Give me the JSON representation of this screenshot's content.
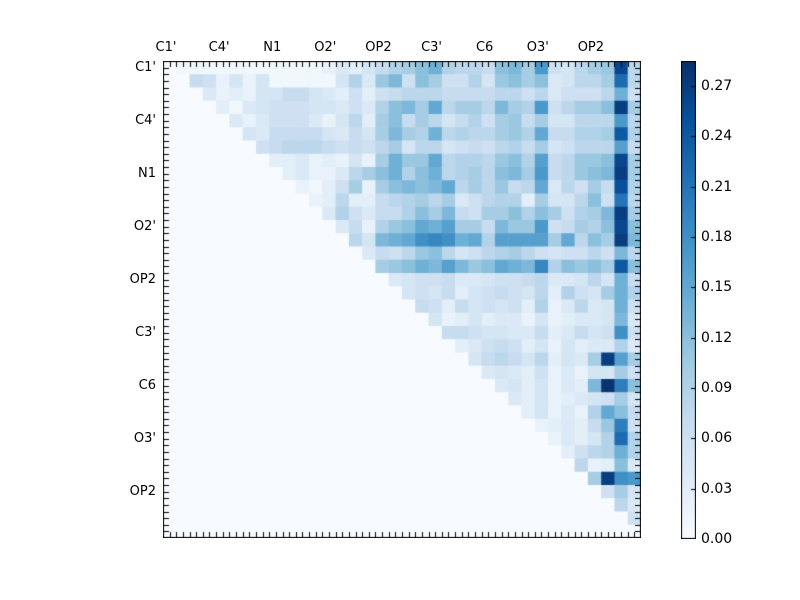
{
  "figure": {
    "background": "#ffffff"
  },
  "chart_data": {
    "type": "heatmap",
    "title": "",
    "n": 36,
    "label_every": 4,
    "ticks_per_cell": 2,
    "x_tick_labels": [
      "C1'",
      "C4'",
      "N1",
      "O2'",
      "OP2",
      "C3'",
      "C6",
      "O3'",
      "OP2"
    ],
    "y_tick_labels": [
      "C1'",
      "C4'",
      "N1",
      "O2'",
      "OP2",
      "C3'",
      "C6",
      "O3'",
      "OP2"
    ],
    "vmin": 0.0,
    "vmax": 0.285,
    "colormap": "Blues",
    "colormap_stops": [
      0,
      0.125,
      0.25,
      0.375,
      0.5,
      0.625,
      0.75,
      0.875,
      1.0
    ],
    "colormap_colors": [
      "#f7fbff",
      "#deebf7",
      "#c6dbef",
      "#9ecae1",
      "#6baed6",
      "#4292c6",
      "#2171b5",
      "#08519c",
      "#08306b"
    ],
    "colorbar": {
      "tick_values": [
        0.0,
        0.03,
        0.06,
        0.09,
        0.12,
        0.15,
        0.18,
        0.21,
        0.24,
        0.27
      ],
      "tick_labels": [
        "0.00",
        "0.03",
        "0.06",
        "0.09",
        "0.12",
        "0.15",
        "0.18",
        "0.21",
        "0.24",
        "0.27"
      ]
    },
    "matrix": [
      [
        0,
        0.01,
        0.01,
        0.01,
        0.01,
        0.01,
        0.01,
        0.01,
        0.01,
        0.01,
        0.01,
        0.01,
        0.02,
        0.04,
        0.03,
        0.05,
        0.07,
        0.09,
        0.1,
        0.12,
        0.14,
        0.09,
        0.08,
        0.08,
        0.07,
        0.12,
        0.13,
        0.1,
        0.17,
        0.06,
        0.05,
        0.08,
        0.1,
        0.11,
        0.26,
        0.08
      ],
      [
        0,
        0,
        0.07,
        0.06,
        0.02,
        0.05,
        0.02,
        0.05,
        0.01,
        0.01,
        0.01,
        0.01,
        0.01,
        0.05,
        0.09,
        0.04,
        0.11,
        0.13,
        0.06,
        0.12,
        0.1,
        0.06,
        0.06,
        0.09,
        0.05,
        0.11,
        0.12,
        0.1,
        0.12,
        0.04,
        0.05,
        0.08,
        0.08,
        0.1,
        0.22,
        0.08
      ],
      [
        0,
        0,
        0,
        0.04,
        0.02,
        0.03,
        0.02,
        0.05,
        0.05,
        0.07,
        0.07,
        0.05,
        0.04,
        0.03,
        0.06,
        0.03,
        0.06,
        0.07,
        0.08,
        0.08,
        0.08,
        0.07,
        0.07,
        0.07,
        0.07,
        0.08,
        0.08,
        0.06,
        0.08,
        0.04,
        0.06,
        0.06,
        0.06,
        0.08,
        0.14,
        0.06
      ],
      [
        0,
        0,
        0,
        0,
        0.03,
        0.01,
        0.04,
        0.05,
        0.06,
        0.06,
        0.06,
        0.05,
        0.05,
        0.04,
        0.06,
        0.04,
        0.09,
        0.12,
        0.13,
        0.1,
        0.15,
        0.08,
        0.1,
        0.1,
        0.08,
        0.13,
        0.1,
        0.09,
        0.17,
        0.06,
        0.08,
        0.1,
        0.1,
        0.12,
        0.27,
        0.1
      ],
      [
        0,
        0,
        0,
        0,
        0,
        0.04,
        0.02,
        0.04,
        0.06,
        0.06,
        0.06,
        0.04,
        0.02,
        0.05,
        0.08,
        0.03,
        0.1,
        0.12,
        0.07,
        0.1,
        0.08,
        0.05,
        0.07,
        0.09,
        0.06,
        0.1,
        0.11,
        0.07,
        0.1,
        0.05,
        0.05,
        0.08,
        0.08,
        0.08,
        0.17,
        0.08
      ],
      [
        0,
        0,
        0,
        0,
        0,
        0,
        0.05,
        0.04,
        0.07,
        0.07,
        0.07,
        0.07,
        0.05,
        0.04,
        0.07,
        0.05,
        0.1,
        0.13,
        0.1,
        0.09,
        0.14,
        0.08,
        0.09,
        0.08,
        0.08,
        0.1,
        0.11,
        0.09,
        0.15,
        0.07,
        0.07,
        0.09,
        0.09,
        0.1,
        0.24,
        0.09
      ],
      [
        0,
        0,
        0,
        0,
        0,
        0,
        0,
        0.06,
        0.07,
        0.08,
        0.08,
        0.08,
        0.07,
        0.06,
        0.07,
        0.06,
        0.08,
        0.1,
        0.05,
        0.08,
        0.08,
        0.05,
        0.06,
        0.07,
        0.06,
        0.08,
        0.09,
        0.07,
        0.1,
        0.05,
        0.06,
        0.08,
        0.08,
        0.08,
        0.16,
        0.07
      ],
      [
        0,
        0,
        0,
        0,
        0,
        0,
        0,
        0,
        0.03,
        0.03,
        0.04,
        0.02,
        0.03,
        0.02,
        0.05,
        0.02,
        0.1,
        0.14,
        0.11,
        0.11,
        0.15,
        0.08,
        0.09,
        0.09,
        0.08,
        0.11,
        0.12,
        0.09,
        0.16,
        0.07,
        0.08,
        0.11,
        0.11,
        0.12,
        0.26,
        0.1
      ],
      [
        0,
        0,
        0,
        0,
        0,
        0,
        0,
        0,
        0,
        0.03,
        0.04,
        0.02,
        0.02,
        0.04,
        0.08,
        0.1,
        0.12,
        0.14,
        0.09,
        0.12,
        0.14,
        0.08,
        0.09,
        0.1,
        0.08,
        0.12,
        0.13,
        0.1,
        0.17,
        0.07,
        0.08,
        0.11,
        0.12,
        0.13,
        0.27,
        0.1
      ],
      [
        0,
        0,
        0,
        0,
        0,
        0,
        0,
        0,
        0,
        0,
        0.02,
        0.01,
        0.03,
        0.06,
        0.1,
        0.02,
        0.1,
        0.12,
        0.13,
        0.12,
        0.13,
        0.15,
        0.08,
        0.1,
        0.08,
        0.11,
        0.07,
        0.08,
        0.15,
        0.04,
        0.08,
        0.06,
        0.1,
        0.07,
        0.25,
        0.09
      ],
      [
        0,
        0,
        0,
        0,
        0,
        0,
        0,
        0,
        0,
        0,
        0,
        0.02,
        0.03,
        0.08,
        0.03,
        0.03,
        0.07,
        0.08,
        0.09,
        0.1,
        0.08,
        0.1,
        0.04,
        0.06,
        0.08,
        0.09,
        0.09,
        0.03,
        0.1,
        0.05,
        0.05,
        0.08,
        0.12,
        0.06,
        0.21,
        0.08
      ],
      [
        0,
        0,
        0,
        0,
        0,
        0,
        0,
        0,
        0,
        0,
        0,
        0,
        0.04,
        0.09,
        0.06,
        0.04,
        0.07,
        0.07,
        0.09,
        0.12,
        0.1,
        0.13,
        0.07,
        0.06,
        0.1,
        0.1,
        0.12,
        0.09,
        0.12,
        0.1,
        0.06,
        0.09,
        0.1,
        0.13,
        0.27,
        0.1
      ],
      [
        0,
        0,
        0,
        0,
        0,
        0,
        0,
        0,
        0,
        0,
        0,
        0,
        0,
        0.04,
        0.07,
        0.02,
        0.09,
        0.11,
        0.12,
        0.15,
        0.14,
        0.16,
        0.1,
        0.1,
        0.07,
        0.13,
        0.11,
        0.11,
        0.17,
        0.06,
        0.07,
        0.1,
        0.09,
        0.12,
        0.26,
        0.12
      ],
      [
        0,
        0,
        0,
        0,
        0,
        0,
        0,
        0,
        0,
        0,
        0,
        0,
        0,
        0,
        0.08,
        0.05,
        0.13,
        0.14,
        0.15,
        0.18,
        0.19,
        0.18,
        0.14,
        0.15,
        0.09,
        0.16,
        0.16,
        0.16,
        0.16,
        0.1,
        0.15,
        0.08,
        0.12,
        0.1,
        0.27,
        0.13
      ],
      [
        0,
        0,
        0,
        0,
        0,
        0,
        0,
        0,
        0,
        0,
        0,
        0,
        0,
        0,
        0,
        0.04,
        0.07,
        0.06,
        0.08,
        0.11,
        0.12,
        0.08,
        0.05,
        0.06,
        0.08,
        0.09,
        0.1,
        0.08,
        0.06,
        0.05,
        0.06,
        0.06,
        0.08,
        0.06,
        0.13,
        0.08
      ],
      [
        0,
        0,
        0,
        0,
        0,
        0,
        0,
        0,
        0,
        0,
        0,
        0,
        0,
        0,
        0,
        0,
        0.1,
        0.11,
        0.12,
        0.14,
        0.13,
        0.16,
        0.13,
        0.11,
        0.12,
        0.15,
        0.14,
        0.13,
        0.19,
        0.09,
        0.12,
        0.11,
        0.12,
        0.1,
        0.24,
        0.12
      ],
      [
        0,
        0,
        0,
        0,
        0,
        0,
        0,
        0,
        0,
        0,
        0,
        0,
        0,
        0,
        0,
        0,
        0,
        0.04,
        0.05,
        0.06,
        0.06,
        0.07,
        0.04,
        0.04,
        0.05,
        0.06,
        0.06,
        0.07,
        0.08,
        0.04,
        0.04,
        0.05,
        0.08,
        0.05,
        0.14,
        0.07
      ],
      [
        0,
        0,
        0,
        0,
        0,
        0,
        0,
        0,
        0,
        0,
        0,
        0,
        0,
        0,
        0,
        0,
        0,
        0,
        0.05,
        0.06,
        0.05,
        0.07,
        0.03,
        0.05,
        0.06,
        0.07,
        0.06,
        0.05,
        0.08,
        0.03,
        0.09,
        0.06,
        0.05,
        0.1,
        0.14,
        0.09
      ],
      [
        0,
        0,
        0,
        0,
        0,
        0,
        0,
        0,
        0,
        0,
        0,
        0,
        0,
        0,
        0,
        0,
        0,
        0,
        0,
        0.07,
        0.06,
        0.03,
        0.07,
        0.05,
        0.06,
        0.05,
        0.06,
        0.03,
        0.09,
        0.02,
        0.04,
        0.08,
        0.04,
        0.05,
        0.14,
        0.06
      ],
      [
        0,
        0,
        0,
        0,
        0,
        0,
        0,
        0,
        0,
        0,
        0,
        0,
        0,
        0,
        0,
        0,
        0,
        0,
        0,
        0,
        0.05,
        0.02,
        0.03,
        0.05,
        0.03,
        0.04,
        0.04,
        0.02,
        0.05,
        0.02,
        0.03,
        0.04,
        0.04,
        0.05,
        0.13,
        0.04
      ],
      [
        0,
        0,
        0,
        0,
        0,
        0,
        0,
        0,
        0,
        0,
        0,
        0,
        0,
        0,
        0,
        0,
        0,
        0,
        0,
        0,
        0,
        0.07,
        0.07,
        0.06,
        0.05,
        0.05,
        0.04,
        0.04,
        0.07,
        0.03,
        0.04,
        0.07,
        0.05,
        0.06,
        0.18,
        0.06
      ],
      [
        0,
        0,
        0,
        0,
        0,
        0,
        0,
        0,
        0,
        0,
        0,
        0,
        0,
        0,
        0,
        0,
        0,
        0,
        0,
        0,
        0,
        0,
        0.03,
        0.04,
        0.06,
        0.07,
        0.06,
        0.03,
        0.05,
        0.02,
        0.05,
        0.03,
        0.04,
        0.04,
        0.09,
        0.04
      ],
      [
        0,
        0,
        0,
        0,
        0,
        0,
        0,
        0,
        0,
        0,
        0,
        0,
        0,
        0,
        0,
        0,
        0,
        0,
        0,
        0,
        0,
        0,
        0,
        0.05,
        0.07,
        0.08,
        0.07,
        0.05,
        0.08,
        0.03,
        0.05,
        0.04,
        0.1,
        0.27,
        0.16,
        0.1
      ],
      [
        0,
        0,
        0,
        0,
        0,
        0,
        0,
        0,
        0,
        0,
        0,
        0,
        0,
        0,
        0,
        0,
        0,
        0,
        0,
        0,
        0,
        0,
        0,
        0,
        0.04,
        0.05,
        0.04,
        0.03,
        0.06,
        0.02,
        0.04,
        0.02,
        0.05,
        0.05,
        0.1,
        0.06
      ],
      [
        0,
        0,
        0,
        0,
        0,
        0,
        0,
        0,
        0,
        0,
        0,
        0,
        0,
        0,
        0,
        0,
        0,
        0,
        0,
        0,
        0,
        0,
        0,
        0,
        0,
        0.04,
        0.05,
        0.03,
        0.05,
        0.02,
        0.04,
        0.03,
        0.13,
        0.28,
        0.2,
        0.12
      ],
      [
        0,
        0,
        0,
        0,
        0,
        0,
        0,
        0,
        0,
        0,
        0,
        0,
        0,
        0,
        0,
        0,
        0,
        0,
        0,
        0,
        0,
        0,
        0,
        0,
        0,
        0,
        0.04,
        0.03,
        0.05,
        0.02,
        0.03,
        0.04,
        0.05,
        0.06,
        0.1,
        0.05
      ],
      [
        0,
        0,
        0,
        0,
        0,
        0,
        0,
        0,
        0,
        0,
        0,
        0,
        0,
        0,
        0,
        0,
        0,
        0,
        0,
        0,
        0,
        0,
        0,
        0,
        0,
        0,
        0,
        0.03,
        0.05,
        0.02,
        0.04,
        0.02,
        0.09,
        0.15,
        0.12,
        0.07
      ],
      [
        0,
        0,
        0,
        0,
        0,
        0,
        0,
        0,
        0,
        0,
        0,
        0,
        0,
        0,
        0,
        0,
        0,
        0,
        0,
        0,
        0,
        0,
        0,
        0,
        0,
        0,
        0,
        0,
        0.02,
        0.03,
        0.04,
        0.03,
        0.07,
        0.11,
        0.2,
        0.06
      ],
      [
        0,
        0,
        0,
        0,
        0,
        0,
        0,
        0,
        0,
        0,
        0,
        0,
        0,
        0,
        0,
        0,
        0,
        0,
        0,
        0,
        0,
        0,
        0,
        0,
        0,
        0,
        0,
        0,
        0,
        0.02,
        0.04,
        0.03,
        0.05,
        0.09,
        0.22,
        0.09
      ],
      [
        0,
        0,
        0,
        0,
        0,
        0,
        0,
        0,
        0,
        0,
        0,
        0,
        0,
        0,
        0,
        0,
        0,
        0,
        0,
        0,
        0,
        0,
        0,
        0,
        0,
        0,
        0,
        0,
        0,
        0,
        0.03,
        0.06,
        0.08,
        0.09,
        0.14,
        0.09
      ],
      [
        0,
        0,
        0,
        0,
        0,
        0,
        0,
        0,
        0,
        0,
        0,
        0,
        0,
        0,
        0,
        0,
        0,
        0,
        0,
        0,
        0,
        0,
        0,
        0,
        0,
        0,
        0,
        0,
        0,
        0,
        0,
        0.08,
        0.02,
        0.03,
        0.12,
        0.04
      ],
      [
        0,
        0,
        0,
        0,
        0,
        0,
        0,
        0,
        0,
        0,
        0,
        0,
        0,
        0,
        0,
        0,
        0,
        0,
        0,
        0,
        0,
        0,
        0,
        0,
        0,
        0,
        0,
        0,
        0,
        0,
        0,
        0,
        0.1,
        0.27,
        0.18,
        0.17
      ],
      [
        0,
        0,
        0,
        0,
        0,
        0,
        0,
        0,
        0,
        0,
        0,
        0,
        0,
        0,
        0,
        0,
        0,
        0,
        0,
        0,
        0,
        0,
        0,
        0,
        0,
        0,
        0,
        0,
        0,
        0,
        0,
        0,
        0,
        0.06,
        0.1,
        0.05
      ],
      [
        0,
        0,
        0,
        0,
        0,
        0,
        0,
        0,
        0,
        0,
        0,
        0,
        0,
        0,
        0,
        0,
        0,
        0,
        0,
        0,
        0,
        0,
        0,
        0,
        0,
        0,
        0,
        0,
        0,
        0,
        0,
        0,
        0,
        0,
        0.08,
        0.04
      ],
      [
        0,
        0,
        0,
        0,
        0,
        0,
        0,
        0,
        0,
        0,
        0,
        0,
        0,
        0,
        0,
        0,
        0,
        0,
        0,
        0,
        0,
        0,
        0,
        0,
        0,
        0,
        0,
        0,
        0,
        0,
        0,
        0,
        0,
        0,
        0,
        0.06
      ],
      [
        0,
        0,
        0,
        0,
        0,
        0,
        0,
        0,
        0,
        0,
        0,
        0,
        0,
        0,
        0,
        0,
        0,
        0,
        0,
        0,
        0,
        0,
        0,
        0,
        0,
        0,
        0,
        0,
        0,
        0,
        0,
        0,
        0,
        0,
        0,
        0
      ]
    ]
  }
}
